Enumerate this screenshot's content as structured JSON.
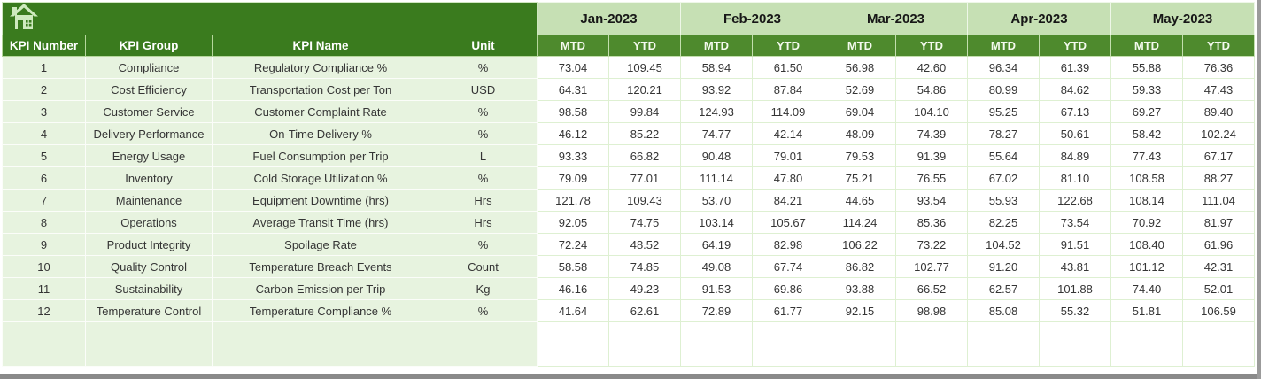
{
  "table": {
    "left_headers": [
      "KPI Number",
      "KPI Group",
      "KPI Name",
      "Unit"
    ],
    "months": [
      "Jan-2023",
      "Feb-2023",
      "Mar-2023",
      "Apr-2023",
      "May-2023"
    ],
    "sub_headers": [
      "MTD",
      "YTD"
    ],
    "rows": [
      {
        "number": "1",
        "group": "Compliance",
        "name": "Regulatory Compliance %",
        "unit": "%",
        "values": [
          "73.04",
          "109.45",
          "58.94",
          "61.50",
          "56.98",
          "42.60",
          "96.34",
          "61.39",
          "55.88",
          "76.36"
        ]
      },
      {
        "number": "2",
        "group": "Cost Efficiency",
        "name": "Transportation Cost per Ton",
        "unit": "USD",
        "values": [
          "64.31",
          "120.21",
          "93.92",
          "87.84",
          "52.69",
          "54.86",
          "80.99",
          "84.62",
          "59.33",
          "47.43"
        ]
      },
      {
        "number": "3",
        "group": "Customer Service",
        "name": "Customer Complaint Rate",
        "unit": "%",
        "values": [
          "98.58",
          "99.84",
          "124.93",
          "114.09",
          "69.04",
          "104.10",
          "95.25",
          "67.13",
          "69.27",
          "89.40"
        ]
      },
      {
        "number": "4",
        "group": "Delivery Performance",
        "name": "On-Time Delivery %",
        "unit": "%",
        "values": [
          "46.12",
          "85.22",
          "74.77",
          "42.14",
          "48.09",
          "74.39",
          "78.27",
          "50.61",
          "58.42",
          "102.24"
        ]
      },
      {
        "number": "5",
        "group": "Energy Usage",
        "name": "Fuel Consumption per Trip",
        "unit": "L",
        "values": [
          "93.33",
          "66.82",
          "90.48",
          "79.01",
          "79.53",
          "91.39",
          "55.64",
          "84.89",
          "77.43",
          "67.17"
        ]
      },
      {
        "number": "6",
        "group": "Inventory",
        "name": "Cold Storage Utilization %",
        "unit": "%",
        "values": [
          "79.09",
          "77.01",
          "111.14",
          "47.80",
          "75.21",
          "76.55",
          "67.02",
          "81.10",
          "108.58",
          "88.27"
        ]
      },
      {
        "number": "7",
        "group": "Maintenance",
        "name": "Equipment Downtime (hrs)",
        "unit": "Hrs",
        "values": [
          "121.78",
          "109.43",
          "53.70",
          "84.21",
          "44.65",
          "93.54",
          "55.93",
          "122.68",
          "108.14",
          "111.04"
        ]
      },
      {
        "number": "8",
        "group": "Operations",
        "name": "Average Transit Time (hrs)",
        "unit": "Hrs",
        "values": [
          "92.05",
          "74.75",
          "103.14",
          "105.67",
          "114.24",
          "85.36",
          "82.25",
          "73.54",
          "70.92",
          "81.97"
        ]
      },
      {
        "number": "9",
        "group": "Product Integrity",
        "name": "Spoilage Rate",
        "unit": "%",
        "values": [
          "72.24",
          "48.52",
          "64.19",
          "82.98",
          "106.22",
          "73.22",
          "104.52",
          "91.51",
          "108.40",
          "61.96"
        ]
      },
      {
        "number": "10",
        "group": "Quality Control",
        "name": "Temperature Breach Events",
        "unit": "Count",
        "values": [
          "58.58",
          "74.85",
          "49.08",
          "67.74",
          "86.82",
          "102.77",
          "91.20",
          "43.81",
          "101.12",
          "42.31"
        ]
      },
      {
        "number": "11",
        "group": "Sustainability",
        "name": "Carbon Emission per Trip",
        "unit": "Kg",
        "values": [
          "46.16",
          "49.23",
          "91.53",
          "69.86",
          "93.88",
          "66.52",
          "62.57",
          "101.88",
          "74.40",
          "52.01"
        ]
      },
      {
        "number": "12",
        "group": "Temperature Control",
        "name": "Temperature Compliance %",
        "unit": "%",
        "values": [
          "41.64",
          "62.61",
          "72.89",
          "61.77",
          "92.15",
          "98.98",
          "85.08",
          "55.32",
          "51.81",
          "106.59"
        ]
      }
    ],
    "empty_row_count": 2
  },
  "icons": {
    "home": "home-icon"
  },
  "colors": {
    "dark_green": "#3A7B1E",
    "mid_green": "#4E8A2D",
    "light_green": "#C6E0B4",
    "row_green": "#E7F3DF",
    "cell_white": "#FFFFFF",
    "grid_line": "#DEF0D2",
    "window_gray": "#8A8A8A"
  }
}
